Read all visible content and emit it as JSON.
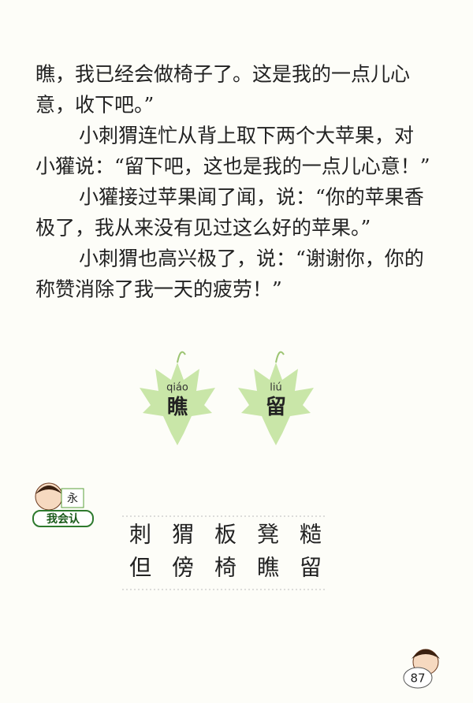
{
  "paragraphs": [
    {
      "lines": [
        "瞧，我已经会做椅子了。这是我的一点儿心",
        "意，收下吧。”"
      ]
    },
    {
      "lines": [
        "小刺猬连忙从背上取下两个大苹果，对",
        "小獾说：“留下吧，这也是我的一点儿心意！”"
      ]
    },
    {
      "lines": [
        "小獾接过苹果闻了闻，说：“你的苹果香",
        "极了，我从来没有见过这么好的苹果。”"
      ]
    },
    {
      "lines": [
        "小刺猬也高兴极了，说：“谢谢你，你的",
        "称赞消除了我一天的疲劳！”"
      ]
    }
  ],
  "leaves": [
    {
      "pinyin": "qiáo",
      "char": "瞧"
    },
    {
      "pinyin": "liú",
      "char": "留"
    }
  ],
  "badge": {
    "label": "我会认",
    "board": "永"
  },
  "characters": [
    [
      "刺",
      "猬",
      "板",
      "凳",
      "糙"
    ],
    [
      "但",
      "傍",
      "椅",
      "瞧",
      "留"
    ]
  ],
  "page_number": "87"
}
